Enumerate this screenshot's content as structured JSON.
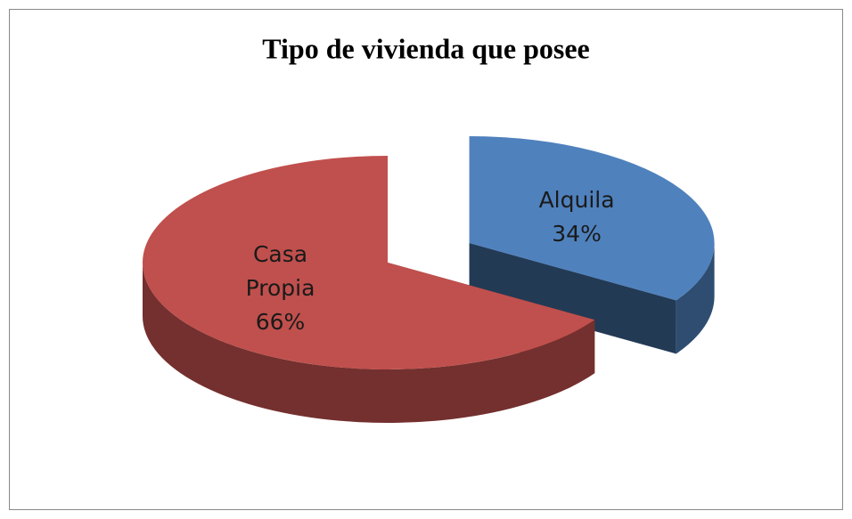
{
  "chart_data": {
    "type": "pie",
    "title": "Tipo de vivienda que posee",
    "categories": [
      "Alquila",
      "Casa Propia"
    ],
    "values": [
      34,
      66
    ],
    "value_labels": [
      "34%",
      "66%"
    ],
    "colors": [
      "#4f81bd",
      "#c0504d"
    ],
    "exploded": [
      true,
      false
    ]
  }
}
